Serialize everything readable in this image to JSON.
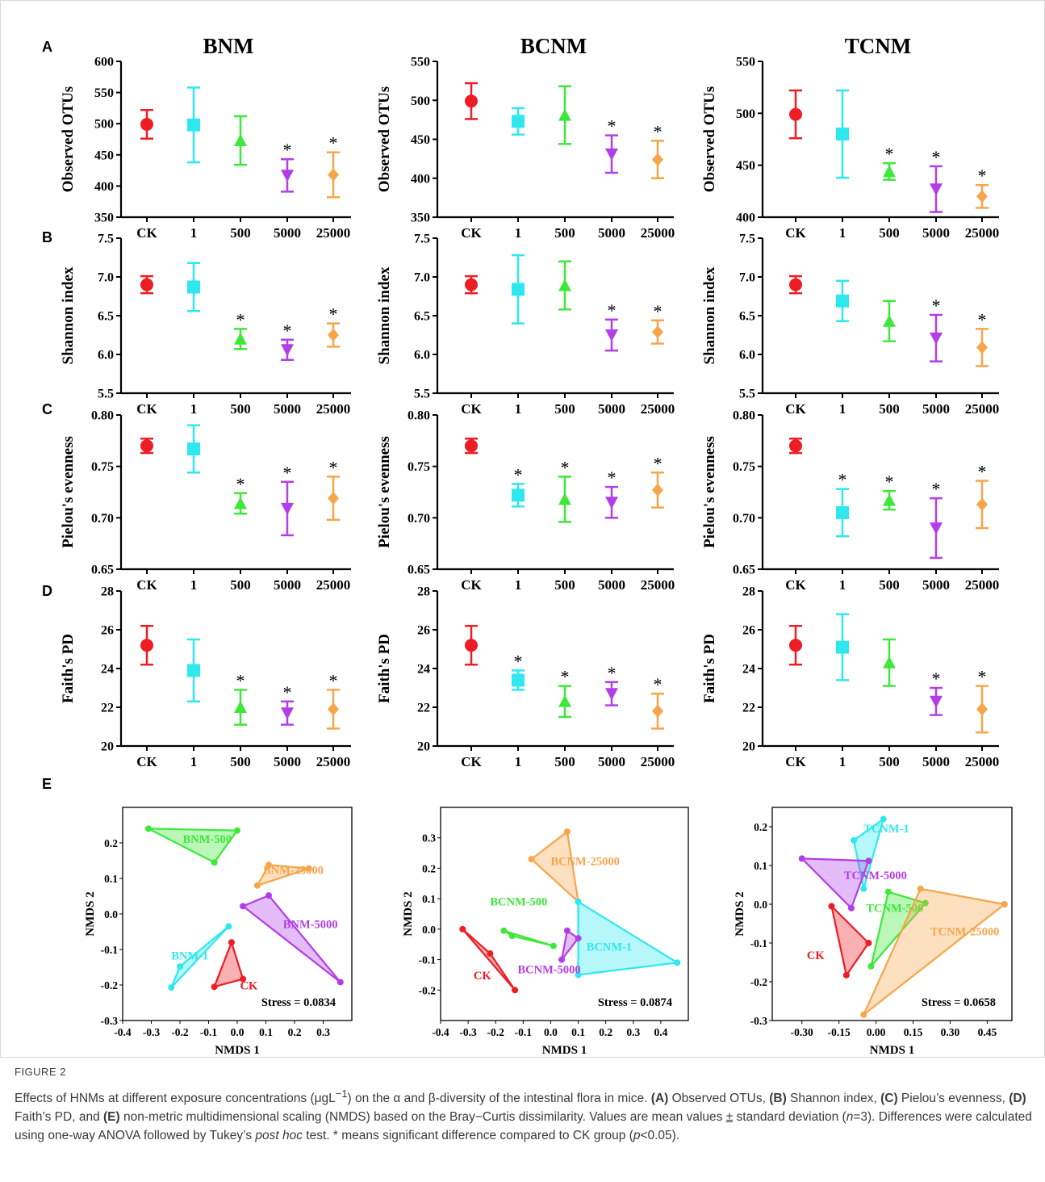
{
  "columns": [
    "BNM",
    "BCNM",
    "TCNM"
  ],
  "row_letters": [
    "A",
    "B",
    "C",
    "D",
    "E"
  ],
  "categories": [
    "CK",
    "1",
    "500",
    "5000",
    "25000"
  ],
  "series_colors": [
    "#ee1c24",
    "#2ee8ee",
    "#3ee83a",
    "#b23ee8",
    "#f7a54a"
  ],
  "marker_shapes": [
    "circle",
    "square",
    "triangle-up",
    "triangle-down",
    "diamond"
  ],
  "chart_data": [
    {
      "type": "scatter",
      "row": "A",
      "column": "BNM",
      "ylabel": "Observed OTUs",
      "ylim": [
        350,
        600
      ],
      "yticks": [
        "350",
        "400",
        "450",
        "500",
        "550",
        "600"
      ],
      "categories": [
        "CK",
        "1",
        "500",
        "5000",
        "25000"
      ],
      "mean": [
        499,
        498,
        473,
        417,
        418
      ],
      "sd": [
        23,
        60,
        39,
        26,
        36
      ],
      "significant": [
        false,
        false,
        false,
        true,
        true
      ]
    },
    {
      "type": "scatter",
      "row": "A",
      "column": "BCNM",
      "ylabel": "Observed OTUs",
      "ylim": [
        350,
        550
      ],
      "yticks": [
        "350",
        "400",
        "450",
        "500",
        "550"
      ],
      "categories": [
        "CK",
        "1",
        "500",
        "5000",
        "25000"
      ],
      "mean": [
        499,
        473,
        481,
        431,
        424
      ],
      "sd": [
        23,
        17,
        37,
        24,
        24
      ],
      "significant": [
        false,
        false,
        false,
        true,
        true
      ]
    },
    {
      "type": "scatter",
      "row": "A",
      "column": "TCNM",
      "ylabel": "Observed OTUs",
      "ylim": [
        400,
        550
      ],
      "yticks": [
        "400",
        "450",
        "500",
        "550"
      ],
      "categories": [
        "CK",
        "1",
        "500",
        "5000",
        "25000"
      ],
      "mean": [
        499,
        480,
        444,
        427,
        420
      ],
      "sd": [
        23,
        42,
        8,
        22,
        11
      ],
      "significant": [
        false,
        false,
        true,
        true,
        true
      ]
    },
    {
      "type": "scatter",
      "row": "B",
      "column": "BNM",
      "ylabel": "Shannon index",
      "ylim": [
        5.5,
        7.5
      ],
      "yticks": [
        "5.5",
        "6.0",
        "6.5",
        "7.0",
        "7.5"
      ],
      "categories": [
        "CK",
        "1",
        "500",
        "5000",
        "25000"
      ],
      "mean": [
        6.9,
        6.87,
        6.2,
        6.06,
        6.25
      ],
      "sd": [
        0.11,
        0.31,
        0.13,
        0.13,
        0.15
      ],
      "significant": [
        false,
        false,
        true,
        true,
        true
      ]
    },
    {
      "type": "scatter",
      "row": "B",
      "column": "BCNM",
      "ylabel": "Shannon index",
      "ylim": [
        5.5,
        7.5
      ],
      "yticks": [
        "5.5",
        "6.0",
        "6.5",
        "7.0",
        "7.5"
      ],
      "categories": [
        "CK",
        "1",
        "500",
        "5000",
        "25000"
      ],
      "mean": [
        6.9,
        6.84,
        6.89,
        6.25,
        6.29
      ],
      "sd": [
        0.11,
        0.44,
        0.31,
        0.2,
        0.15
      ],
      "significant": [
        false,
        false,
        false,
        true,
        true
      ]
    },
    {
      "type": "scatter",
      "row": "B",
      "column": "TCNM",
      "ylabel": "Shannon index",
      "ylim": [
        5.5,
        7.5
      ],
      "yticks": [
        "5.5",
        "6.0",
        "6.5",
        "7.0",
        "7.5"
      ],
      "categories": [
        "CK",
        "1",
        "500",
        "5000",
        "25000"
      ],
      "mean": [
        6.9,
        6.69,
        6.43,
        6.21,
        6.09
      ],
      "sd": [
        0.11,
        0.26,
        0.26,
        0.3,
        0.24
      ],
      "significant": [
        false,
        false,
        false,
        true,
        true
      ]
    },
    {
      "type": "scatter",
      "row": "C",
      "column": "BNM",
      "ylabel": "Pielou's evenness",
      "ylim": [
        0.65,
        0.8
      ],
      "yticks": [
        "0.65",
        "0.70",
        "0.75",
        "0.80"
      ],
      "categories": [
        "CK",
        "1",
        "500",
        "5000",
        "25000"
      ],
      "mean": [
        0.77,
        0.767,
        0.714,
        0.709,
        0.719
      ],
      "sd": [
        0.007,
        0.023,
        0.01,
        0.026,
        0.021
      ],
      "significant": [
        false,
        false,
        true,
        true,
        true
      ]
    },
    {
      "type": "scatter",
      "row": "C",
      "column": "BCNM",
      "ylabel": "Pielou's evenness",
      "ylim": [
        0.65,
        0.8
      ],
      "yticks": [
        "0.65",
        "0.70",
        "0.75",
        "0.80"
      ],
      "categories": [
        "CK",
        "1",
        "500",
        "5000",
        "25000"
      ],
      "mean": [
        0.77,
        0.722,
        0.718,
        0.715,
        0.727
      ],
      "sd": [
        0.007,
        0.011,
        0.022,
        0.015,
        0.017
      ],
      "significant": [
        false,
        true,
        true,
        true,
        true
      ]
    },
    {
      "type": "scatter",
      "row": "C",
      "column": "TCNM",
      "ylabel": "Pielou's evenness",
      "ylim": [
        0.65,
        0.8
      ],
      "yticks": [
        "0.65",
        "0.70",
        "0.75",
        "0.80"
      ],
      "categories": [
        "CK",
        "1",
        "500",
        "5000",
        "25000"
      ],
      "mean": [
        0.77,
        0.705,
        0.717,
        0.69,
        0.713
      ],
      "sd": [
        0.007,
        0.023,
        0.009,
        0.029,
        0.023
      ],
      "significant": [
        false,
        true,
        true,
        true,
        true
      ]
    },
    {
      "type": "scatter",
      "row": "D",
      "column": "BNM",
      "ylabel": "Faith's PD",
      "ylim": [
        20,
        28
      ],
      "yticks": [
        "20",
        "22",
        "24",
        "26",
        "28"
      ],
      "categories": [
        "CK",
        "1",
        "500",
        "5000",
        "25000"
      ],
      "mean": [
        25.2,
        23.9,
        22.0,
        21.7,
        21.9
      ],
      "sd": [
        1.0,
        1.6,
        0.9,
        0.6,
        1.0
      ],
      "significant": [
        false,
        false,
        true,
        true,
        true
      ]
    },
    {
      "type": "scatter",
      "row": "D",
      "column": "BCNM",
      "ylabel": "Faith's PD",
      "ylim": [
        20,
        28
      ],
      "yticks": [
        "20",
        "22",
        "24",
        "26",
        "28"
      ],
      "categories": [
        "CK",
        "1",
        "500",
        "5000",
        "25000"
      ],
      "mean": [
        25.2,
        23.4,
        22.3,
        22.7,
        21.8
      ],
      "sd": [
        1.0,
        0.5,
        0.8,
        0.6,
        0.9
      ],
      "significant": [
        false,
        true,
        true,
        true,
        true
      ]
    },
    {
      "type": "scatter",
      "row": "D",
      "column": "TCNM",
      "ylabel": "Faith's PD",
      "ylim": [
        20,
        28
      ],
      "yticks": [
        "20",
        "22",
        "24",
        "26",
        "28"
      ],
      "categories": [
        "CK",
        "1",
        "500",
        "5000",
        "25000"
      ],
      "mean": [
        25.2,
        25.1,
        24.3,
        22.3,
        21.9
      ],
      "sd": [
        1.0,
        1.7,
        1.2,
        0.7,
        1.2
      ],
      "significant": [
        false,
        false,
        false,
        true,
        true
      ]
    },
    {
      "type": "scatter",
      "row": "E",
      "column": "BNM",
      "xlabel": "NMDS 1",
      "ylabel": "NMDS 2",
      "xlim": [
        -0.4,
        0.4
      ],
      "ylim": [
        -0.3,
        0.3
      ],
      "xticks": [
        "-0.4",
        "-0.3",
        "-0.2",
        "-0.1",
        "0.0",
        "0.1",
        "0.2",
        "0.3"
      ],
      "xtick_values": [
        -0.4,
        -0.3,
        -0.2,
        -0.1,
        0.0,
        0.1,
        0.2,
        0.3
      ],
      "yticks": [
        "-0.3",
        "-0.2",
        "-0.1",
        "0.0",
        "0.1",
        "0.2"
      ],
      "ytick_values": [
        -0.3,
        -0.2,
        -0.1,
        0.0,
        0.1,
        0.2
      ],
      "stress": "Stress = 0.0834",
      "groups": [
        {
          "name": "BNM-500",
          "color_index": 2,
          "points": [
            [
              -0.31,
              0.24
            ],
            [
              0.0,
              0.235
            ],
            [
              -0.08,
              0.145
            ]
          ],
          "label_pos": [
            -0.19,
            0.2
          ]
        },
        {
          "name": "BNM-25000",
          "color_index": 4,
          "points": [
            [
              0.07,
              0.08
            ],
            [
              0.11,
              0.138
            ],
            [
              0.25,
              0.128
            ]
          ],
          "label_pos": [
            0.09,
            0.113
          ]
        },
        {
          "name": "BNM-5000",
          "color_index": 3,
          "points": [
            [
              0.02,
              0.022
            ],
            [
              0.11,
              0.052
            ],
            [
              0.36,
              -0.192
            ]
          ],
          "label_pos": [
            0.16,
            -0.04
          ]
        },
        {
          "name": "BNM-1",
          "color_index": 1,
          "points": [
            [
              -0.03,
              -0.035
            ],
            [
              -0.2,
              -0.148
            ],
            [
              -0.23,
              -0.207
            ]
          ],
          "label_pos": [
            -0.23,
            -0.128
          ]
        },
        {
          "name": "CK",
          "color_index": 0,
          "points": [
            [
              -0.02,
              -0.08
            ],
            [
              0.02,
              -0.183
            ],
            [
              -0.08,
              -0.205
            ]
          ],
          "label_pos": [
            0.01,
            -0.213
          ]
        }
      ]
    },
    {
      "type": "scatter",
      "row": "E",
      "column": "BCNM",
      "xlabel": "NMDS 1",
      "ylabel": "NMDS 2",
      "xlim": [
        -0.4,
        0.5
      ],
      "ylim": [
        -0.3,
        0.4
      ],
      "xticks": [
        "-0.4",
        "-0.3",
        "-0.2",
        "-0.1",
        "0.0",
        "0.1",
        "0.2",
        "0.3",
        "0.4"
      ],
      "xtick_values": [
        -0.4,
        -0.3,
        -0.2,
        -0.1,
        0.0,
        0.1,
        0.2,
        0.3,
        0.4
      ],
      "yticks": [
        "-0.2",
        "-0.1",
        "0.0",
        "0.1",
        "0.2",
        "0.3"
      ],
      "ytick_values": [
        -0.2,
        -0.1,
        0.0,
        0.1,
        0.2,
        0.3
      ],
      "stress": "Stress = 0.0874",
      "groups": [
        {
          "name": "BCNM-25000",
          "color_index": 4,
          "points": [
            [
              0.06,
              0.32
            ],
            [
              -0.07,
              0.23
            ],
            [
              0.1,
              0.09
            ]
          ],
          "label_pos": [
            0.0,
            0.21
          ]
        },
        {
          "name": "BCNM-500",
          "color_index": 2,
          "points": [
            [
              -0.17,
              -0.005
            ],
            [
              -0.14,
              -0.022
            ],
            [
              0.01,
              -0.055
            ]
          ],
          "label_pos": [
            -0.22,
            0.078
          ]
        },
        {
          "name": "BCNM-1",
          "color_index": 1,
          "points": [
            [
              0.1,
              0.09
            ],
            [
              0.46,
              -0.11
            ],
            [
              0.1,
              -0.15
            ]
          ],
          "label_pos": [
            0.13,
            -0.07
          ]
        },
        {
          "name": "BCNM-5000",
          "color_index": 3,
          "points": [
            [
              0.06,
              -0.005
            ],
            [
              0.1,
              -0.03
            ],
            [
              0.04,
              -0.1
            ]
          ],
          "label_pos": [
            -0.12,
            -0.145
          ]
        },
        {
          "name": "CK",
          "color_index": 0,
          "points": [
            [
              -0.32,
              0.0
            ],
            [
              -0.22,
              -0.08
            ],
            [
              -0.13,
              -0.2
            ]
          ],
          "label_pos": [
            -0.28,
            -0.165
          ]
        }
      ]
    },
    {
      "type": "scatter",
      "row": "E",
      "column": "TCNM",
      "xlabel": "NMDS 1",
      "ylabel": "NMDS 2",
      "xlim": [
        -0.42,
        0.55
      ],
      "ylim": [
        -0.3,
        0.25
      ],
      "xticks": [
        "-0.30",
        "-0.15",
        "0.00",
        "0.15",
        "0.30",
        "0.45"
      ],
      "xtick_values": [
        -0.3,
        -0.15,
        0.0,
        0.15,
        0.3,
        0.45
      ],
      "yticks": [
        "-0.3",
        "-0.2",
        "-0.1",
        "0.0",
        "0.1",
        "0.2"
      ],
      "ytick_values": [
        -0.3,
        -0.2,
        -0.1,
        0.0,
        0.1,
        0.2
      ],
      "stress": "Stress = 0.0658",
      "groups": [
        {
          "name": "TCNM-1",
          "color_index": 1,
          "points": [
            [
              0.03,
              0.22
            ],
            [
              -0.09,
              0.165
            ],
            [
              -0.05,
              0.04
            ]
          ],
          "label_pos": [
            -0.05,
            0.185
          ]
        },
        {
          "name": "TCNM-5000",
          "color_index": 3,
          "points": [
            [
              -0.3,
              0.118
            ],
            [
              -0.03,
              0.112
            ],
            [
              -0.1,
              -0.01
            ]
          ],
          "label_pos": [
            -0.13,
            0.065
          ]
        },
        {
          "name": "TCNM-500",
          "color_index": 2,
          "points": [
            [
              0.05,
              0.032
            ],
            [
              0.2,
              0.003
            ],
            [
              -0.02,
              -0.16
            ]
          ],
          "label_pos": [
            -0.04,
            -0.02
          ]
        },
        {
          "name": "TCNM-25000",
          "color_index": 4,
          "points": [
            [
              0.18,
              0.04
            ],
            [
              0.52,
              0.0
            ],
            [
              -0.05,
              -0.285
            ]
          ],
          "label_pos": [
            0.22,
            -0.08
          ]
        },
        {
          "name": "CK",
          "color_index": 0,
          "points": [
            [
              -0.18,
              -0.005
            ],
            [
              -0.03,
              -0.1
            ],
            [
              -0.12,
              -0.183
            ]
          ],
          "label_pos": [
            -0.28,
            -0.142
          ]
        }
      ]
    }
  ],
  "caption": {
    "figure_label": "FIGURE 2",
    "text_1": "Effects of HNMs at different exposure concentrations (μgL",
    "superscript": "−1",
    "text_2": ") on the α and β-diversity of the intestinal flora in mice. ",
    "a": "(A)",
    "a_text": " Observed OTUs, ",
    "b": "(B)",
    "b_text": " Shannon index, ",
    "c": "(C)",
    "c_text": " Pielou’s evenness, ",
    "d": "(D)",
    "d_text": " Faith’s PD, and ",
    "e": "(E)",
    "e_text": " non-metric multidimensional scaling (NMDS) based on the Bray−Curtis dissimilarity. Values are mean values ",
    "pm": "±",
    "text_3": " standard deviation (",
    "n_italic": "n",
    "text_4": "=3). Differences were calculated using one-way ANOVA followed by Tukey’s ",
    "posthoc_italic": "post hoc",
    "text_5": " test. * means significant difference compared to CK group (",
    "p_italic": "p",
    "text_6": "<0.05)."
  }
}
